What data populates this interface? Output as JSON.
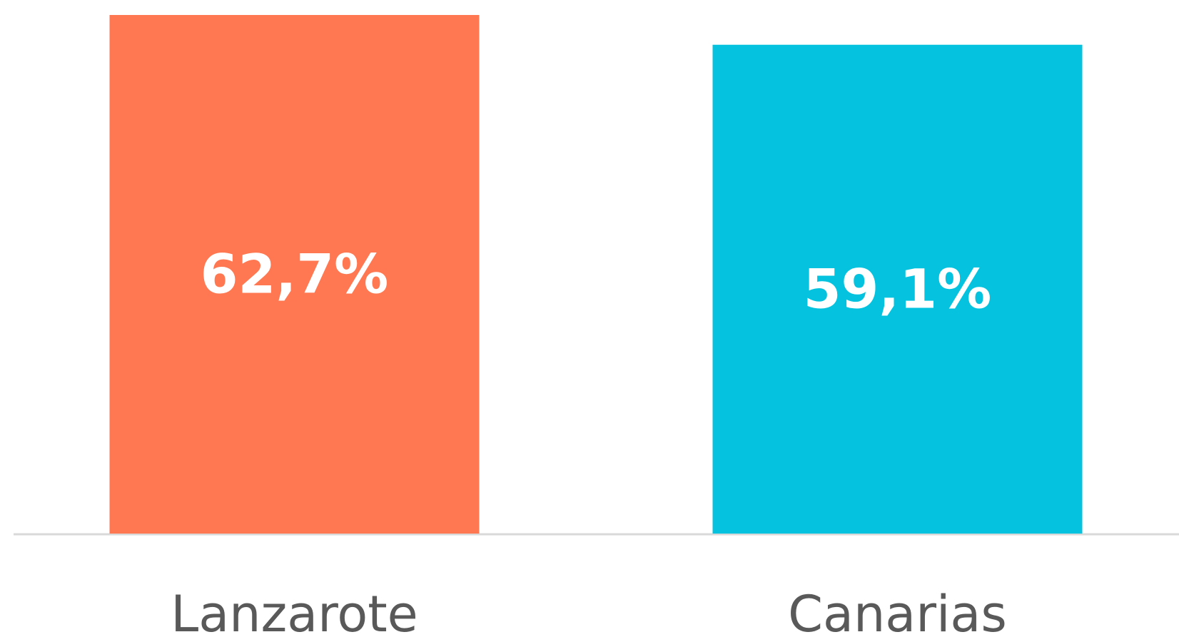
{
  "chart_data": {
    "type": "bar",
    "categories": [
      "Lanzarote",
      "Canarias"
    ],
    "values": [
      62.7,
      59.1
    ],
    "value_labels": [
      "62,7%",
      "59,1%"
    ],
    "colors": [
      "#ff7851",
      "#05c3de"
    ]
  }
}
